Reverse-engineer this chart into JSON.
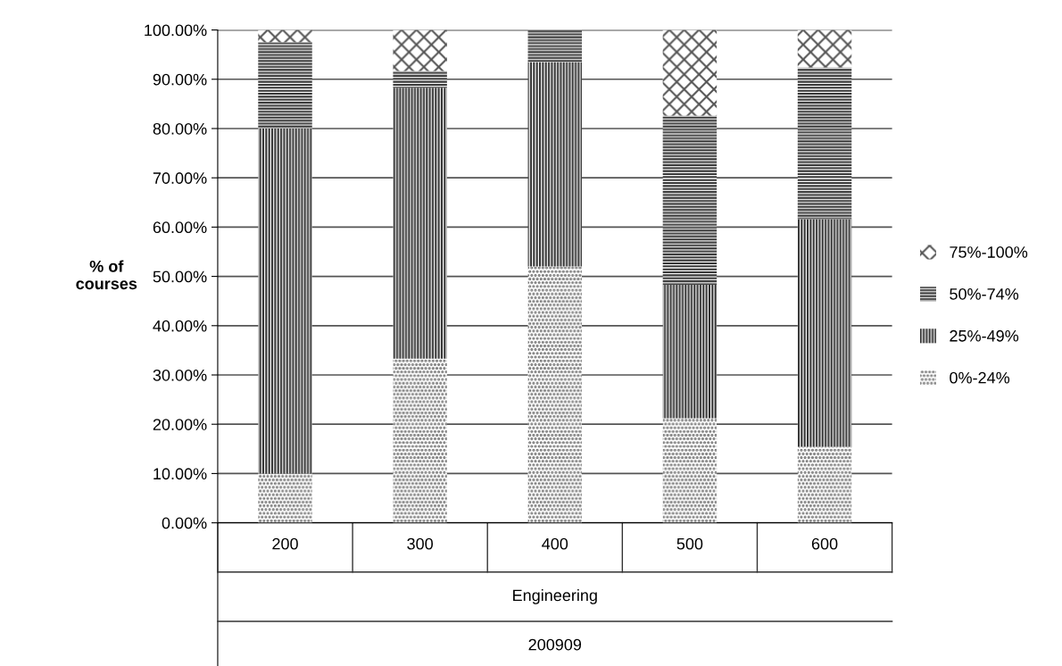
{
  "chart_data": {
    "type": "bar",
    "stacked": true,
    "ylabel": "% of\ncourses",
    "xlabel": "Engineering",
    "annotations": [
      "200909"
    ],
    "categories": [
      "200",
      "300",
      "400",
      "500",
      "600"
    ],
    "series": [
      {
        "name": "0%-24%",
        "color": "#555555",
        "values": [
          10,
          33.3,
          52,
          21.2,
          15.4
        ]
      },
      {
        "name": "25%-49%",
        "color": "#333333",
        "values": [
          70,
          55,
          41.5,
          27.1,
          46.2
        ]
      },
      {
        "name": "50%-74%",
        "color": "#333333",
        "values": [
          17.5,
          3.4,
          6.5,
          34.3,
          30.8
        ]
      },
      {
        "name": "75%-100%",
        "color": "#555555",
        "values": [
          2.5,
          8.3,
          0,
          17.4,
          7.6
        ]
      }
    ],
    "ylim": [
      0,
      100
    ],
    "yticks": [
      {
        "value": 0,
        "label": "0.00%"
      },
      {
        "value": 10,
        "label": "10.00%"
      },
      {
        "value": 20,
        "label": "20.00%"
      },
      {
        "value": 30,
        "label": "30.00%"
      },
      {
        "value": 40,
        "label": "40.00%"
      },
      {
        "value": 50,
        "label": "50.00%"
      },
      {
        "value": 60,
        "label": "60.00%"
      },
      {
        "value": 70,
        "label": "70.00%"
      },
      {
        "value": 80,
        "label": "80.00%"
      },
      {
        "value": 90,
        "label": "90.00%"
      },
      {
        "value": 100,
        "label": "100.00%"
      }
    ],
    "grid": "y",
    "legend": "right"
  }
}
